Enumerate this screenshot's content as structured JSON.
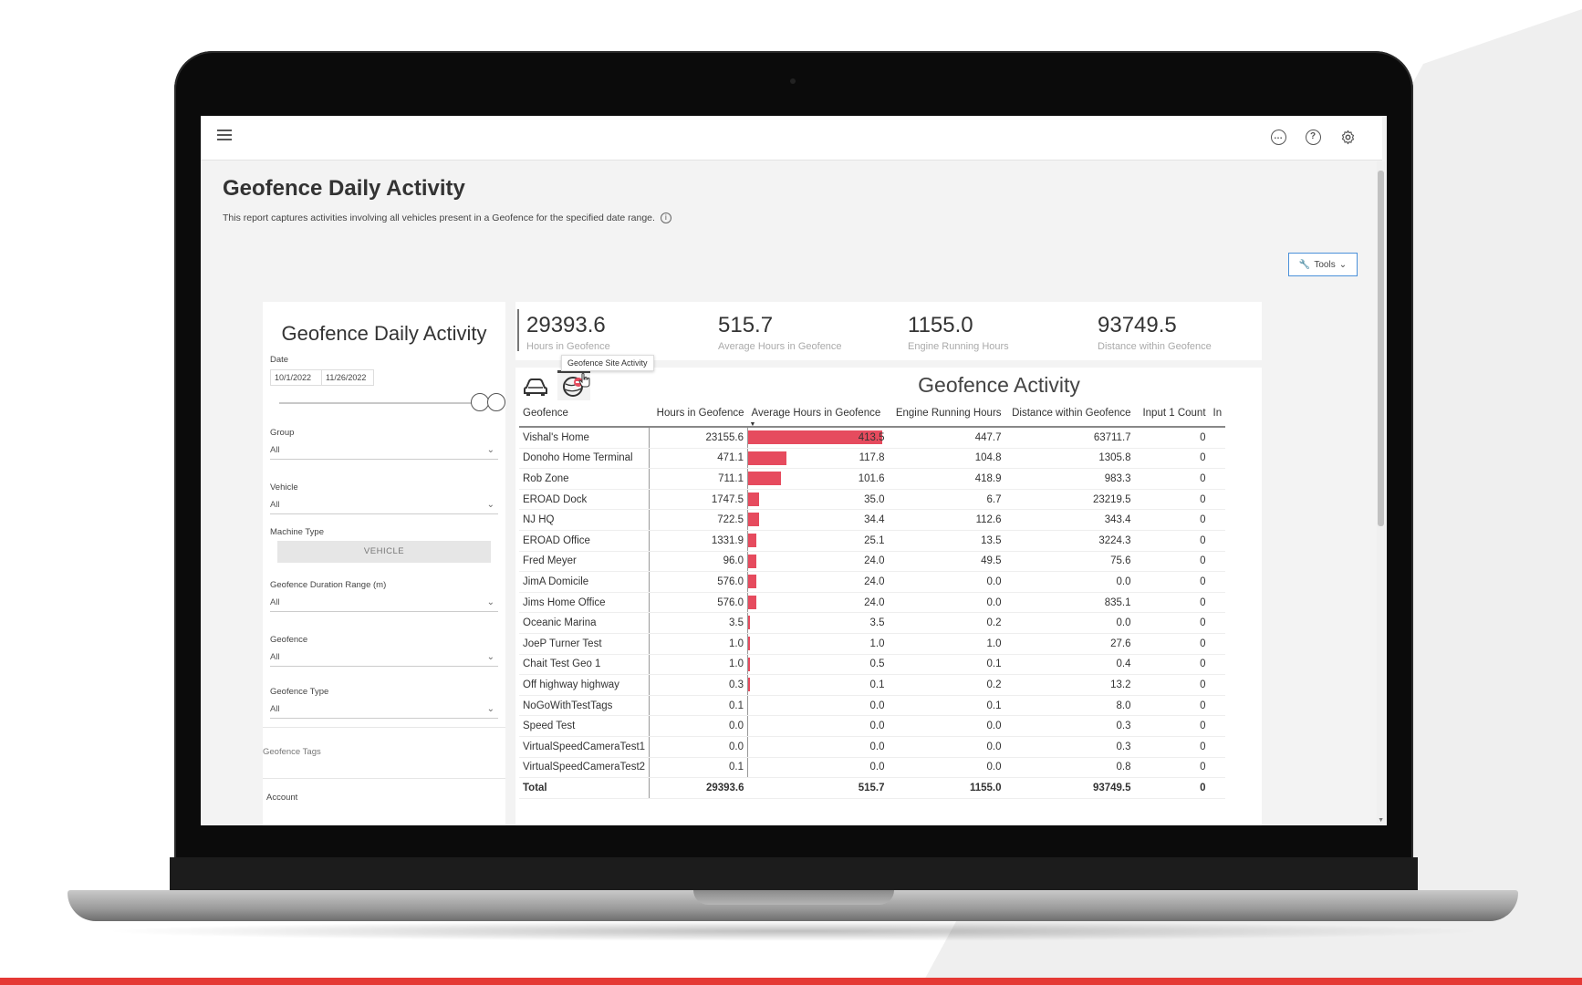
{
  "topbar": {
    "menu_icon": "hamburger-icon",
    "icons": [
      "chat-icon",
      "help-icon",
      "settings-icon"
    ]
  },
  "page": {
    "title": "Geofence Daily Activity",
    "subtitle": "This report captures activities involving all vehicles present in a Geofence for the specified date range.",
    "tools_label": "Tools"
  },
  "filters": {
    "title": "Geofence Daily Activity",
    "date_label": "Date",
    "date_start": "10/1/2022",
    "date_end": "11/26/2022",
    "group_label": "Group",
    "group_value": "All",
    "vehicle_label": "Vehicle",
    "vehicle_value": "All",
    "machine_type_label": "Machine Type",
    "machine_type_button": "VEHICLE",
    "duration_label": "Geofence Duration Range (m)",
    "duration_value": "All",
    "geofence_label": "Geofence",
    "geofence_value": "All",
    "geofence_type_label": "Geofence Type",
    "geofence_type_value": "All",
    "geofence_tags_label": "Geofence Tags",
    "account_label": "Account"
  },
  "kpis": [
    {
      "value": "29393.6",
      "label": "Hours in Geofence"
    },
    {
      "value": "515.7",
      "label": "Average Hours in Geofence"
    },
    {
      "value": "1155.0",
      "label": "Engine Running Hours"
    },
    {
      "value": "93749.5",
      "label": "Distance within Geofence"
    }
  ],
  "tooltip": "Geofence Site Activity",
  "table": {
    "title": "Geofence Activity",
    "columns": [
      "Geofence",
      "Hours in Geofence",
      "Average Hours in Geofence",
      "Engine Running Hours",
      "Distance within Geofence",
      "Input 1 Count",
      "In"
    ],
    "bar_max": 413.5,
    "bar_color": "#e64b5e",
    "rows": [
      {
        "name": "Vishal's Home",
        "hours": "23155.6",
        "avg": "413.5",
        "avg_num": 413.5,
        "engine": "447.7",
        "distance": "63711.7",
        "input1": "0"
      },
      {
        "name": "Donoho Home Terminal",
        "hours": "471.1",
        "avg": "117.8",
        "avg_num": 117.8,
        "engine": "104.8",
        "distance": "1305.8",
        "input1": "0"
      },
      {
        "name": "Rob Zone",
        "hours": "711.1",
        "avg": "101.6",
        "avg_num": 101.6,
        "engine": "418.9",
        "distance": "983.3",
        "input1": "0"
      },
      {
        "name": "EROAD Dock",
        "hours": "1747.5",
        "avg": "35.0",
        "avg_num": 35.0,
        "engine": "6.7",
        "distance": "23219.5",
        "input1": "0"
      },
      {
        "name": "NJ HQ",
        "hours": "722.5",
        "avg": "34.4",
        "avg_num": 34.4,
        "engine": "112.6",
        "distance": "343.4",
        "input1": "0"
      },
      {
        "name": "EROAD Office",
        "hours": "1331.9",
        "avg": "25.1",
        "avg_num": 25.1,
        "engine": "13.5",
        "distance": "3224.3",
        "input1": "0"
      },
      {
        "name": "Fred Meyer",
        "hours": "96.0",
        "avg": "24.0",
        "avg_num": 24.0,
        "engine": "49.5",
        "distance": "75.6",
        "input1": "0"
      },
      {
        "name": "JimA Domicile",
        "hours": "576.0",
        "avg": "24.0",
        "avg_num": 24.0,
        "engine": "0.0",
        "distance": "0.0",
        "input1": "0"
      },
      {
        "name": "Jims Home Office",
        "hours": "576.0",
        "avg": "24.0",
        "avg_num": 24.0,
        "engine": "0.0",
        "distance": "835.1",
        "input1": "0"
      },
      {
        "name": "Oceanic Marina",
        "hours": "3.5",
        "avg": "3.5",
        "avg_num": 3.5,
        "engine": "0.2",
        "distance": "0.0",
        "input1": "0"
      },
      {
        "name": "JoeP Turner Test",
        "hours": "1.0",
        "avg": "1.0",
        "avg_num": 1.0,
        "engine": "1.0",
        "distance": "27.6",
        "input1": "0"
      },
      {
        "name": "Chait Test Geo 1",
        "hours": "1.0",
        "avg": "0.5",
        "avg_num": 0.5,
        "engine": "0.1",
        "distance": "0.4",
        "input1": "0"
      },
      {
        "name": "Off highway highway",
        "hours": "0.3",
        "avg": "0.1",
        "avg_num": 0.1,
        "engine": "0.2",
        "distance": "13.2",
        "input1": "0"
      },
      {
        "name": "NoGoWithTestTags",
        "hours": "0.1",
        "avg": "0.0",
        "avg_num": 0.0,
        "engine": "0.1",
        "distance": "8.0",
        "input1": "0"
      },
      {
        "name": "Speed Test",
        "hours": "0.0",
        "avg": "0.0",
        "avg_num": 0.0,
        "engine": "0.0",
        "distance": "0.3",
        "input1": "0"
      },
      {
        "name": "VirtualSpeedCameraTest1",
        "hours": "0.0",
        "avg": "0.0",
        "avg_num": 0.0,
        "engine": "0.0",
        "distance": "0.3",
        "input1": "0"
      },
      {
        "name": "VirtualSpeedCameraTest2",
        "hours": "0.1",
        "avg": "0.0",
        "avg_num": 0.0,
        "engine": "0.0",
        "distance": "0.8",
        "input1": "0"
      }
    ],
    "total": {
      "name": "Total",
      "hours": "29393.6",
      "avg": "515.7",
      "engine": "1155.0",
      "distance": "93749.5",
      "input1": "0"
    }
  }
}
